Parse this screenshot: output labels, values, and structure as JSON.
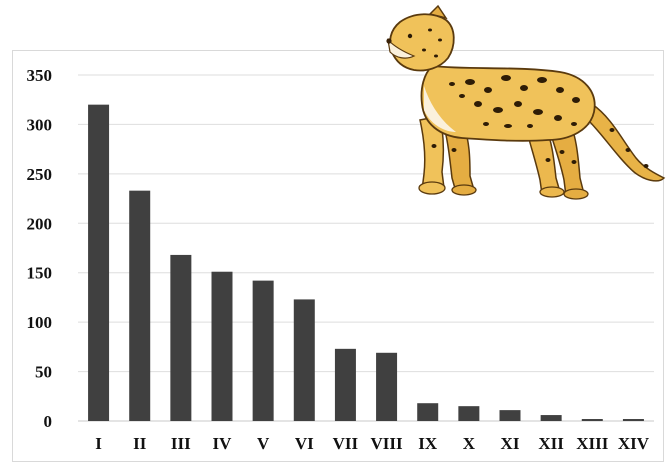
{
  "chart_data": {
    "type": "bar",
    "categories": [
      "I",
      "II",
      "III",
      "IV",
      "V",
      "VI",
      "VII",
      "VIII",
      "IX",
      "X",
      "XI",
      "XII",
      "XIII",
      "XIV"
    ],
    "values": [
      320,
      233,
      168,
      151,
      142,
      123,
      73,
      69,
      18,
      15,
      11,
      6,
      2,
      2
    ],
    "title": "",
    "xlabel": "",
    "ylabel": "",
    "ylim": [
      0,
      350
    ],
    "yticks": [
      0,
      50,
      100,
      150,
      200,
      250,
      300,
      350
    ],
    "grid": true,
    "bar_color": "#404040",
    "decoration": "leopard-illustration"
  }
}
